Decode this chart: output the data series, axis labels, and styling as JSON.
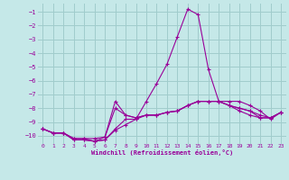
{
  "title": "",
  "xlabel": "Windchill (Refroidissement éolien,°C)",
  "ylabel": "",
  "bg_color": "#c5e8e8",
  "grid_color": "#a0cccc",
  "line_color": "#990099",
  "marker": "+",
  "xlim": [
    -0.5,
    23.5
  ],
  "ylim": [
    -10.6,
    -0.4
  ],
  "yticks": [
    -10,
    -9,
    -8,
    -7,
    -6,
    -5,
    -4,
    -3,
    -2,
    -1
  ],
  "xticks": [
    0,
    1,
    2,
    3,
    4,
    5,
    6,
    7,
    8,
    9,
    10,
    11,
    12,
    13,
    14,
    15,
    16,
    17,
    18,
    19,
    20,
    21,
    22,
    23
  ],
  "series": [
    [
      0,
      1,
      2,
      3,
      4,
      5,
      6,
      7,
      8,
      9,
      10,
      11,
      12,
      13,
      14,
      15,
      16,
      17,
      18,
      19,
      20,
      21,
      22,
      23
    ],
    [
      -9.5,
      -9.8,
      -9.8,
      -10.2,
      -10.2,
      -10.2,
      -10.1,
      -7.5,
      -8.5,
      -8.7,
      -8.5,
      -8.5,
      -8.3,
      -8.2,
      -7.8,
      -7.5,
      -7.5,
      -7.5,
      -7.8,
      -8.0,
      -8.2,
      -8.7,
      -8.7,
      -8.3
    ],
    [
      -9.5,
      -9.8,
      -9.8,
      -10.3,
      -10.3,
      -10.4,
      -10.3,
      -9.5,
      -8.8,
      -8.8,
      -7.5,
      -6.2,
      -4.8,
      -2.8,
      -0.8,
      -1.2,
      -5.2,
      -7.5,
      -7.5,
      -7.5,
      -7.8,
      -8.2,
      -8.8,
      -8.3
    ],
    [
      -9.5,
      -9.8,
      -9.8,
      -10.3,
      -10.3,
      -10.4,
      -10.3,
      -9.6,
      -9.2,
      -8.8,
      -8.5,
      -8.5,
      -8.3,
      -8.2,
      -7.8,
      -7.5,
      -7.5,
      -7.5,
      -7.8,
      -8.2,
      -8.5,
      -8.7,
      -8.7,
      -8.3
    ],
    [
      -9.5,
      -9.8,
      -9.8,
      -10.2,
      -10.2,
      -10.4,
      -10.1,
      -8.0,
      -8.5,
      -8.7,
      -8.5,
      -8.5,
      -8.3,
      -8.2,
      -7.8,
      -7.5,
      -7.5,
      -7.5,
      -7.8,
      -8.0,
      -8.2,
      -8.5,
      -8.7,
      -8.3
    ]
  ]
}
